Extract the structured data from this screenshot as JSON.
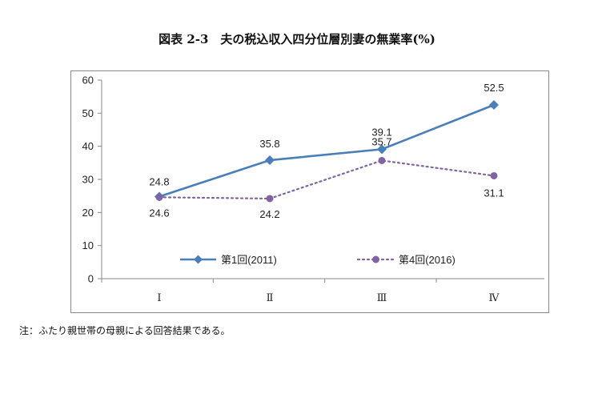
{
  "chart_data": {
    "type": "line",
    "title": "図表 2-3　夫の税込収入四分位層別妻の無業率(%)",
    "categories": [
      "Ⅰ",
      "Ⅱ",
      "Ⅲ",
      "Ⅳ"
    ],
    "ylim": [
      0,
      60
    ],
    "yticks": [
      0,
      10,
      20,
      30,
      40,
      50,
      60
    ],
    "grid": false,
    "legend": "bottom-inside",
    "series": [
      {
        "name": "第1回(2011)",
        "values": [
          24.8,
          35.8,
          39.1,
          52.5
        ],
        "labels": [
          "24.8",
          "35.8",
          "39.1",
          "52.5"
        ],
        "color": "#4a7ebb",
        "marker": "diamond",
        "line": "solid"
      },
      {
        "name": "第4回(2016)",
        "values": [
          24.6,
          24.2,
          35.7,
          31.1
        ],
        "labels": [
          "24.6",
          "24.2",
          "35.7",
          "31.1"
        ],
        "color": "#8064a2",
        "marker": "circle",
        "line": "dotted"
      }
    ]
  },
  "note": "注：ふたり親世帯の母親による回答結果である。"
}
